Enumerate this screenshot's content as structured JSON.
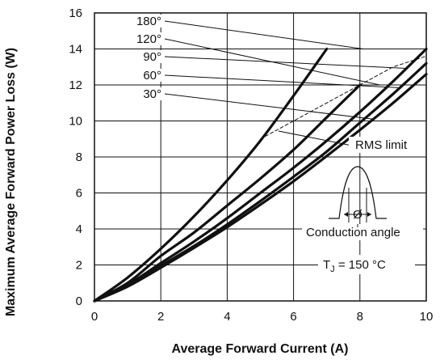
{
  "chart_data": {
    "type": "line",
    "title": "",
    "xlabel": "Average Forward Current (A)",
    "ylabel": "Maximum Average Forward Power Loss (W)",
    "xlim": [
      0,
      10
    ],
    "ylim": [
      0,
      16
    ],
    "xticks": [
      "0",
      "2",
      "4",
      "6",
      "8",
      "10"
    ],
    "yticks": [
      "0",
      "2",
      "4",
      "6",
      "8",
      "10",
      "12",
      "14",
      "16"
    ],
    "grid": true,
    "series": [
      {
        "name": "180°",
        "x": [
          0,
          1,
          2,
          3,
          4,
          5,
          6,
          7
        ],
        "y": [
          0,
          1.3,
          2.9,
          4.7,
          6.7,
          8.9,
          11.4,
          14.0
        ]
      },
      {
        "name": "120°",
        "x": [
          0,
          1,
          2,
          3,
          4,
          5,
          6,
          7,
          8
        ],
        "y": [
          0,
          1.0,
          2.5,
          3.8,
          5.3,
          6.8,
          8.4,
          10.2,
          12.0
        ]
      },
      {
        "name": "90°",
        "x": [
          0,
          1,
          2,
          3,
          4,
          5,
          6,
          7,
          8,
          9,
          10
        ],
        "y": [
          0,
          0.9,
          2.1,
          3.3,
          4.6,
          6.0,
          7.4,
          8.9,
          10.5,
          12.2,
          14.0
        ]
      },
      {
        "name": "60°",
        "x": [
          0,
          1,
          2,
          3,
          4,
          5,
          6,
          7,
          8,
          9,
          10
        ],
        "y": [
          0,
          0.85,
          1.95,
          3.05,
          4.25,
          5.55,
          6.9,
          8.3,
          9.9,
          11.5,
          13.2
        ]
      },
      {
        "name": "30°",
        "x": [
          0,
          1,
          2,
          3,
          4,
          5,
          6,
          7,
          8,
          9,
          10
        ],
        "y": [
          0,
          0.8,
          1.85,
          2.95,
          4.1,
          5.35,
          6.65,
          8.05,
          9.5,
          11.0,
          12.6
        ]
      },
      {
        "name": "RMS limit",
        "x": [
          5,
          6,
          7,
          8,
          9,
          10
        ],
        "y": [
          9.0,
          10.0,
          11.0,
          12.0,
          13.0,
          13.6
        ]
      }
    ],
    "annotations": {
      "rms_limit": "RMS limit",
      "conduction_angle": "Conduction angle",
      "phi_symbol": "Ø",
      "tj_main": "T",
      "tj_sub": "J",
      "tj_rest": " = 150 °C"
    }
  }
}
